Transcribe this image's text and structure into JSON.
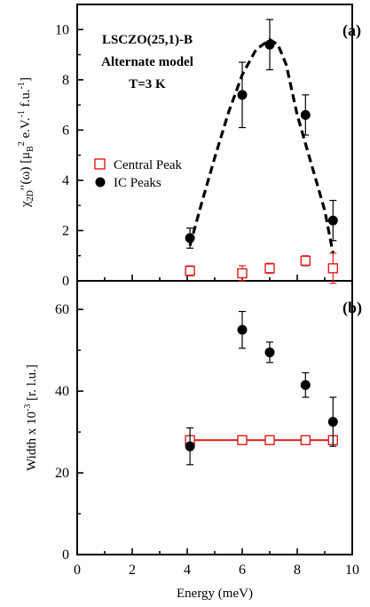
{
  "chart_data": [
    {
      "type": "scatter",
      "panel_label": "(a)",
      "annotation": [
        "LSCZO(25,1)-B",
        "Alternate model",
        "T=3 K"
      ],
      "ylabel": "χ2D′′(ω) [μB² e.V.⁻¹ f.u.⁻¹]",
      "xlabel": "",
      "xlim": [
        0,
        10
      ],
      "ylim": [
        0,
        11
      ],
      "x_ticks": [
        "0",
        "2",
        "4",
        "6",
        "8",
        "10"
      ],
      "y_ticks": [
        "0",
        "2",
        "4",
        "6",
        "8",
        "10"
      ],
      "legend_position": "middle-left",
      "series": [
        {
          "name": "Central Peak",
          "marker": "open-square",
          "color": "#e0191b",
          "x": [
            4.1,
            6.0,
            7.0,
            8.3,
            9.3
          ],
          "y": [
            0.4,
            0.3,
            0.5,
            0.8,
            0.5
          ],
          "err": [
            0.2,
            0.3,
            0.2,
            0.2,
            0.6
          ]
        },
        {
          "name": "IC Peaks",
          "marker": "filled-circle",
          "color": "#000000",
          "x": [
            4.1,
            6.0,
            7.0,
            8.3,
            9.3
          ],
          "y": [
            1.7,
            7.4,
            9.4,
            6.6,
            2.4
          ],
          "err": [
            0.4,
            1.3,
            1.0,
            0.8,
            0.8
          ]
        }
      ],
      "fit_curve": {
        "style": "dashed",
        "x": [
          4.1,
          4.5,
          5.0,
          5.5,
          6.0,
          6.5,
          7.0,
          7.3,
          7.6,
          8.0,
          8.5,
          9.0,
          9.3
        ],
        "y": [
          1.4,
          3.0,
          4.9,
          6.7,
          8.2,
          9.2,
          9.6,
          9.4,
          8.6,
          6.6,
          4.7,
          2.8,
          1.1
        ]
      }
    },
    {
      "type": "scatter",
      "panel_label": "(b)",
      "ylabel": "Width x 10⁻³ [r. l.u.]",
      "xlabel": "Energy (meV)",
      "xlim": [
        0,
        10
      ],
      "ylim": [
        0,
        67
      ],
      "x_ticks": [
        "0",
        "2",
        "4",
        "6",
        "8",
        "10"
      ],
      "y_ticks": [
        "0",
        "20",
        "40",
        "60"
      ],
      "series": [
        {
          "name": "Central Peak",
          "marker": "open-square",
          "color": "#e0191b",
          "x": [
            4.1,
            6.0,
            7.0,
            8.3,
            9.3
          ],
          "y": [
            28,
            28,
            28,
            28,
            28
          ],
          "err": [
            0,
            0,
            0,
            0,
            0
          ]
        },
        {
          "name": "IC Peaks",
          "marker": "filled-circle",
          "color": "#000000",
          "x": [
            4.1,
            6.0,
            7.0,
            8.3,
            9.3
          ],
          "y": [
            26.5,
            55,
            49.5,
            41.5,
            32.5
          ],
          "err": [
            4.5,
            4.5,
            2.5,
            3,
            6
          ]
        }
      ],
      "fit_line": {
        "x": [
          4.1,
          9.3
        ],
        "y": [
          28,
          28
        ],
        "color": "#e0191b"
      }
    }
  ]
}
